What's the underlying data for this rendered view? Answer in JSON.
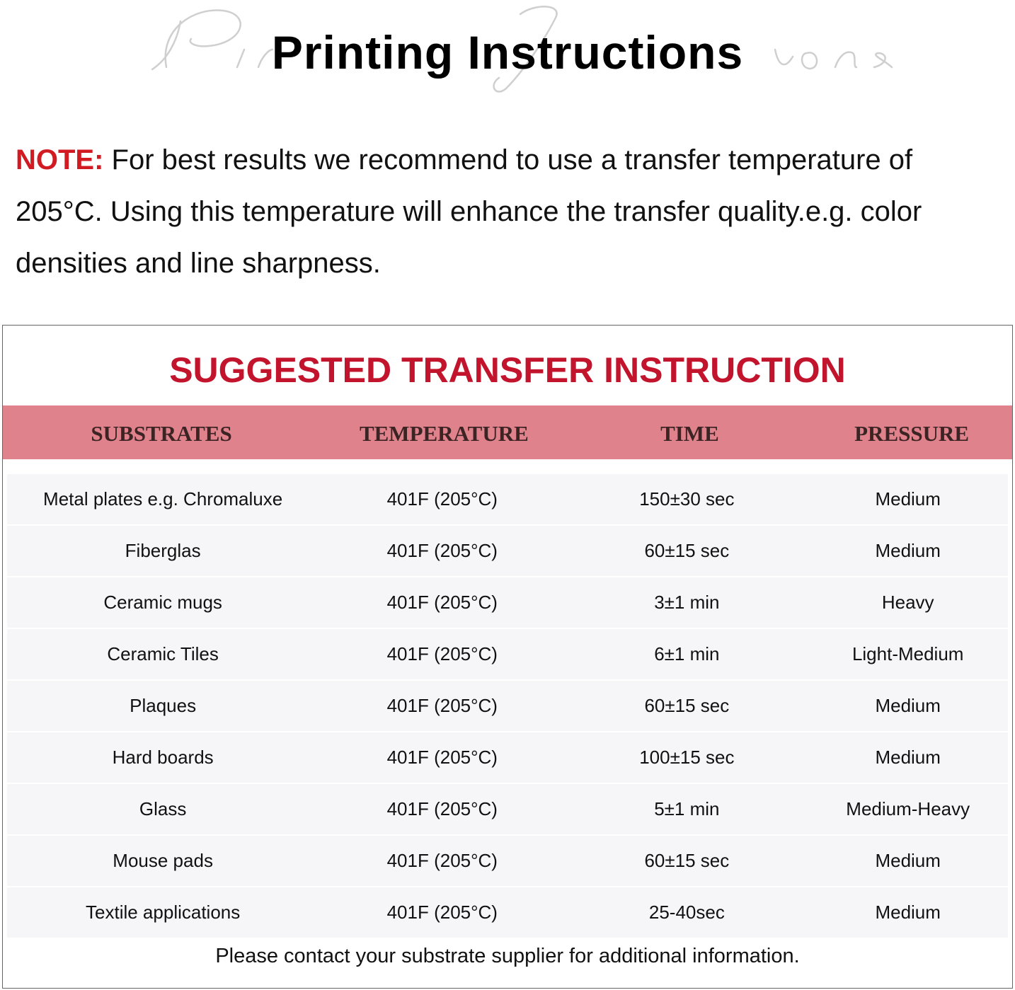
{
  "watermark": "Printing Instructions",
  "title": "Printing Instructions",
  "note": {
    "label": "NOTE:",
    "text": " For best results we recommend to use a transfer temperature of 205°C. Using this temperature will enhance the transfer quality.e.g. color densities and line sharpness."
  },
  "table": {
    "title": "SUGGESTED TRANSFER INSTRUCTION",
    "headers": [
      "SUBSTRATES",
      "TEMPERATURE",
      "TIME",
      "PRESSURE"
    ],
    "rows": [
      [
        "Metal plates e.g. Chromaluxe",
        "401F (205°C)",
        "150±30 sec",
        "Medium"
      ],
      [
        "Fiberglas",
        "401F (205°C)",
        "60±15 sec",
        "Medium"
      ],
      [
        "Ceramic mugs",
        "401F (205°C)",
        "3±1 min",
        "Heavy"
      ],
      [
        "Ceramic Tiles",
        "401F (205°C)",
        "6±1 min",
        "Light-Medium"
      ],
      [
        "Plaques",
        "401F (205°C)",
        "60±15 sec",
        "Medium"
      ],
      [
        "Hard boards",
        "401F (205°C)",
        "100±15 sec",
        "Medium"
      ],
      [
        "Glass",
        "401F (205°C)",
        "5±1 min",
        "Medium-Heavy"
      ],
      [
        "Mouse pads",
        "401F (205°C)",
        "60±15 sec",
        "Medium"
      ],
      [
        "Textile applications",
        "401F (205°C)",
        "25-40sec",
        "Medium"
      ]
    ],
    "footer": "Please contact your substrate supplier for additional information."
  },
  "colors": {
    "accent_red": "#c3142d",
    "header_band": "#df828c"
  }
}
